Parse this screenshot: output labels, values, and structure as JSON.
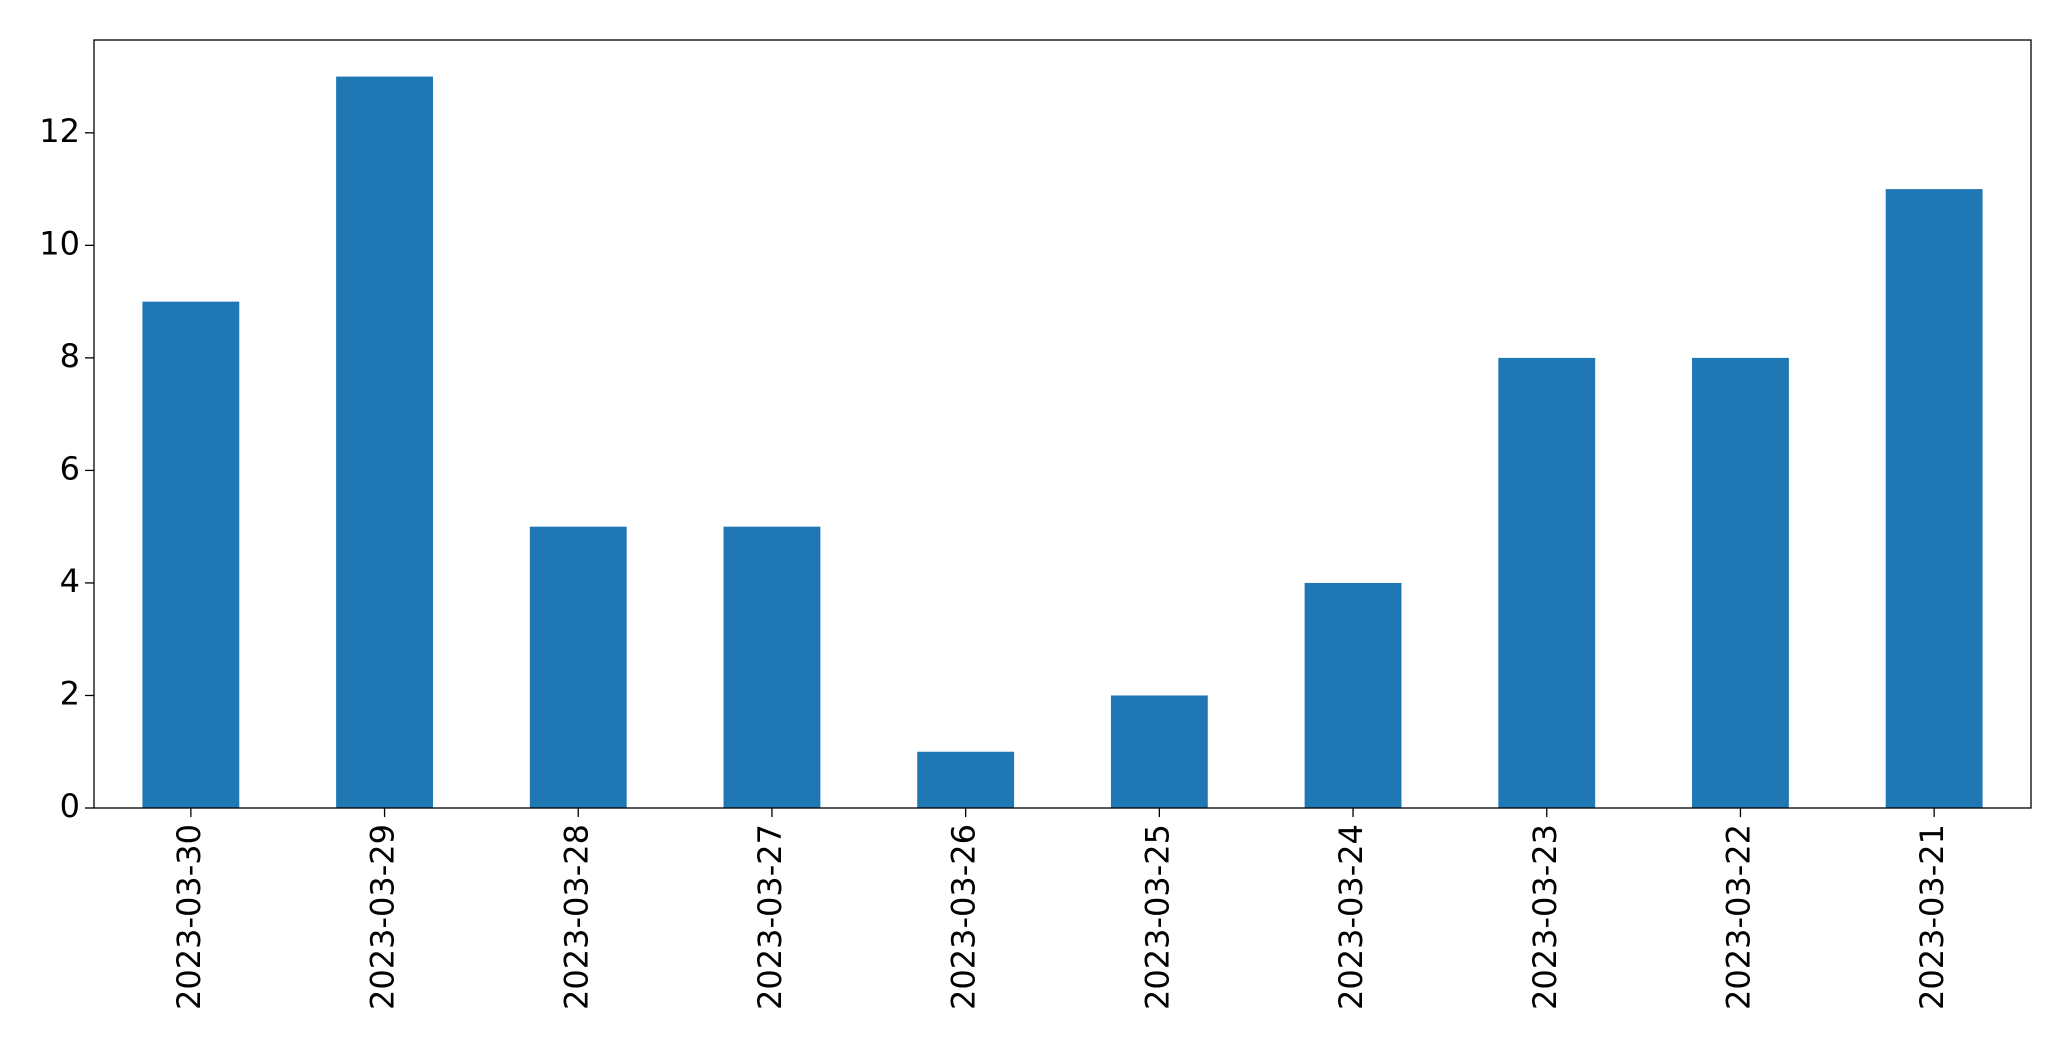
{
  "chart_data": {
    "type": "bar",
    "categories": [
      "2023-03-30",
      "2023-03-29",
      "2023-03-28",
      "2023-03-27",
      "2023-03-26",
      "2023-03-25",
      "2023-03-24",
      "2023-03-23",
      "2023-03-22",
      "2023-03-21"
    ],
    "values": [
      9,
      13,
      5,
      5,
      1,
      2,
      4,
      8,
      8,
      11
    ],
    "color": "#1f77b4",
    "ylim": [
      0,
      13.65
    ],
    "yticks": [
      0,
      2,
      4,
      6,
      8,
      10,
      12
    ],
    "grid": false
  }
}
